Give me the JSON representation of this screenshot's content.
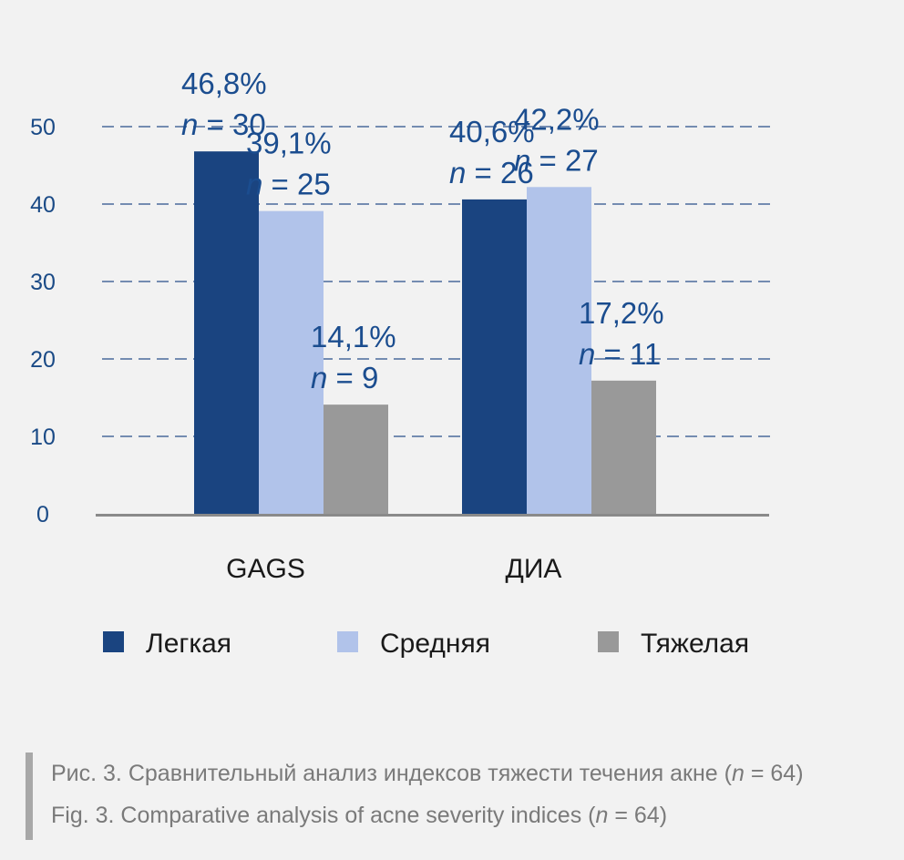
{
  "chart_data": {
    "type": "bar",
    "categories": [
      "GAGS",
      "ДИА"
    ],
    "series": [
      {
        "name": "Легкая",
        "color": "#1a4480",
        "values": [
          46.8,
          40.6
        ],
        "labels": [
          [
            "46,8%",
            "n",
            " = 30"
          ],
          [
            "40,6%",
            "n",
            " = 26"
          ]
        ]
      },
      {
        "name": "Средняя",
        "color": "#b1c3ea",
        "values": [
          39.1,
          42.2
        ],
        "labels": [
          [
            "39,1%",
            "n",
            " = 25"
          ],
          [
            "42,2%",
            "n",
            " = 27"
          ]
        ]
      },
      {
        "name": "Тяжелая",
        "color": "#999999",
        "values": [
          14.1,
          17.2
        ],
        "labels": [
          [
            "14,1%",
            "n",
            " = 9"
          ],
          [
            "17,2%",
            "n",
            " = 11"
          ]
        ]
      }
    ],
    "yticks": [
      0,
      10,
      20,
      30,
      40,
      50
    ],
    "ylim": [
      0,
      50
    ],
    "grid": "dashed horizontal",
    "legend": "bottom"
  },
  "caption": {
    "ru_prefix": "Рис. 3. Сравнительный анализ индексов тяжести течения акне (",
    "ru_n": "n",
    "ru_suffix": " = 64)",
    "en_prefix": "Fig. 3. Comparative analysis of acne severity indices (",
    "en_n": "n",
    "en_suffix": " = 64)"
  }
}
